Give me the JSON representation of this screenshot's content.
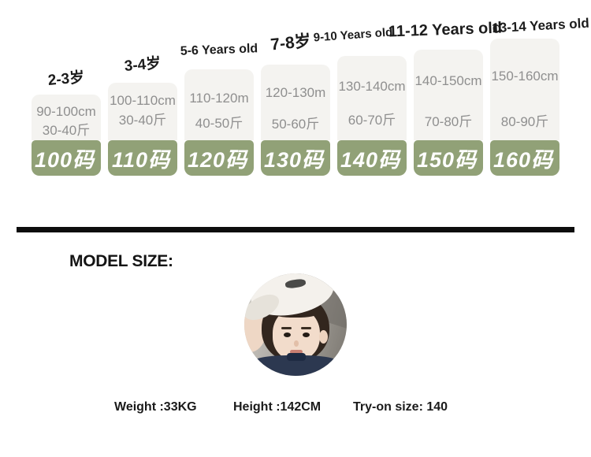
{
  "chart_data": {
    "type": "table",
    "columns": [
      "age",
      "height_range",
      "weight_range",
      "size_code"
    ],
    "rows": [
      {
        "age": "2-3岁",
        "height": "90-100cm",
        "weight": "30-40斤",
        "size": "100码"
      },
      {
        "age": "3-4岁",
        "height": "100-110cm",
        "weight": "30-40斤",
        "size": "110码"
      },
      {
        "age": "5-6 Years old",
        "height": "110-120m",
        "weight": "40-50斤",
        "size": "120码"
      },
      {
        "age": "7-8岁",
        "height": "120-130m",
        "weight": "50-60斤",
        "size": "130码"
      },
      {
        "age": "9-10 Years old",
        "height": "130-140cm",
        "weight": "60-70斤",
        "size": "140码"
      },
      {
        "age": "11-12 Years old",
        "height": "140-150cm",
        "weight": "70-80斤",
        "size": "150码"
      },
      {
        "age": "13-14 Years old",
        "height": "150-160cm",
        "weight": "80-90斤",
        "size": "160码"
      }
    ],
    "layout": "stepped columns ascending right, size badge under each info box"
  },
  "model_section": {
    "heading": "MODEL SIZE:",
    "photo": "child-model-portrait",
    "stats": {
      "weight": "Weight :33KG",
      "height": "Height :142CM",
      "tryon": "Try-on size: 140"
    }
  },
  "colors": {
    "size_badge_green": "#91a177",
    "info_box_gray": "#f4f3f0",
    "info_text_gray": "#8f8f8f",
    "age_label_black": "#1c1c1c",
    "divider_black": "#0d0d0d"
  }
}
